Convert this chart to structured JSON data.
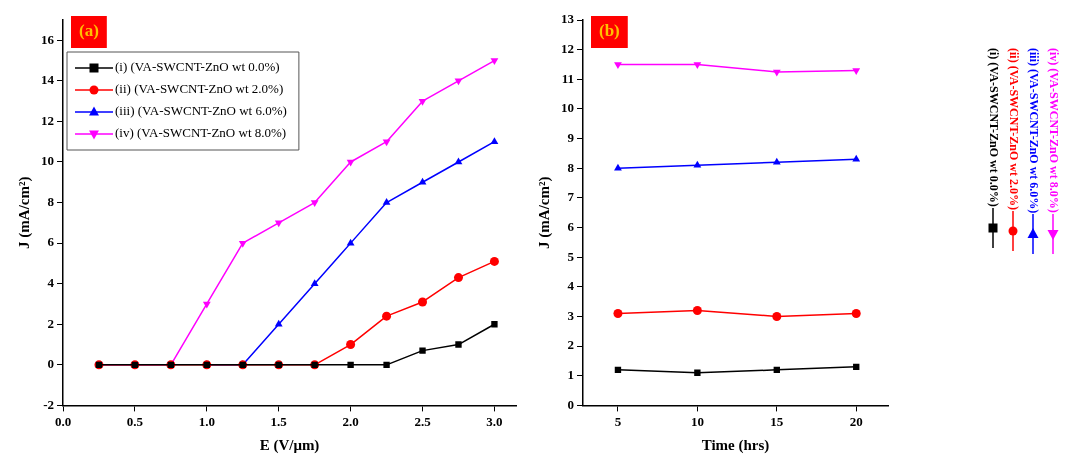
{
  "chart_data": [
    {
      "type": "line",
      "title": "(a)",
      "xlabel": "E (V/μm)",
      "ylabel": "J (mA/cm²)",
      "x": [
        0.25,
        0.5,
        0.75,
        1.0,
        1.25,
        1.5,
        1.75,
        2.0,
        2.25,
        2.5,
        2.75,
        3.0
      ],
      "xlim": [
        0,
        3.15
      ],
      "xticks": [
        {
          "value": 0,
          "label": "0.0"
        },
        0.5,
        {
          "value": 1,
          "label": "1.0"
        },
        1.5,
        {
          "value": 2,
          "label": "2.0"
        },
        2.5,
        {
          "value": 3,
          "label": "3.0"
        }
      ],
      "ylim": [
        -2,
        17
      ],
      "yticks": [
        -2,
        0,
        2,
        4,
        6,
        8,
        10,
        12,
        14,
        16
      ],
      "grid": false,
      "legend": "top left",
      "series": [
        {
          "name": "(i) (VA-SWCNT-ZnO wt 0.0%)",
          "color": "#000000",
          "marker": "square",
          "values": [
            0,
            0,
            0,
            0,
            0,
            0,
            0,
            0,
            0,
            0.7,
            1,
            2
          ]
        },
        {
          "name": "(ii) (VA-SWCNT-ZnO wt 2.0%)",
          "color": "#ff0000",
          "marker": "circle",
          "values": [
            0,
            0,
            0,
            0,
            0,
            0,
            0,
            1,
            2.4,
            3.1,
            4.3,
            5.1
          ]
        },
        {
          "name": "(iii) (VA-SWCNT-ZnO wt 6.0%)",
          "color": "#0000ff",
          "marker": "triangle",
          "values": [
            null,
            null,
            null,
            0,
            0,
            2,
            4,
            6,
            8,
            9,
            10,
            11
          ]
        },
        {
          "name": "(iv) (VA-SWCNT-ZnO wt 8.0%)",
          "color": "#ff00ff",
          "marker": "triangle-down",
          "values": [
            0,
            0,
            0,
            3,
            6,
            7,
            8,
            10,
            11,
            13,
            14,
            15
          ]
        }
      ]
    },
    {
      "type": "line",
      "title": "(b)",
      "xlabel": "Time (hrs)",
      "ylabel": "J (mA/cm²)",
      "x": [
        5,
        10,
        15,
        20
      ],
      "xlim": [
        2.8,
        22
      ],
      "xticks": [
        5,
        10,
        15,
        20
      ],
      "ylim": [
        0,
        13
      ],
      "yticks": [
        0,
        1,
        2,
        3,
        4,
        5,
        6,
        7,
        8,
        9,
        10,
        11,
        12,
        13
      ],
      "grid": false,
      "legend": "right",
      "series": [
        {
          "name": "(i) (VA-SWCNT-ZnO wt 0.0%)",
          "color": "#000000",
          "marker": "square",
          "values": [
            1.2,
            1.1,
            1.2,
            1.3
          ]
        },
        {
          "name": "(ii) (VA-SWCNT-ZnO wt 2.0%)",
          "color": "#ff0000",
          "marker": "circle",
          "values": [
            3.1,
            3.2,
            3.0,
            3.1
          ]
        },
        {
          "name": "(iii) (VA-SWCNT-ZnO wt 6.0%)",
          "color": "#0000ff",
          "marker": "triangle",
          "values": [
            8.0,
            8.1,
            8.2,
            8.3
          ]
        },
        {
          "name": "(iv) (VA-SWCNT-ZnO wt 8.0%)",
          "color": "#ff00ff",
          "marker": "triangle-down",
          "values": [
            11.5,
            11.5,
            11.25,
            11.3
          ]
        }
      ]
    }
  ]
}
